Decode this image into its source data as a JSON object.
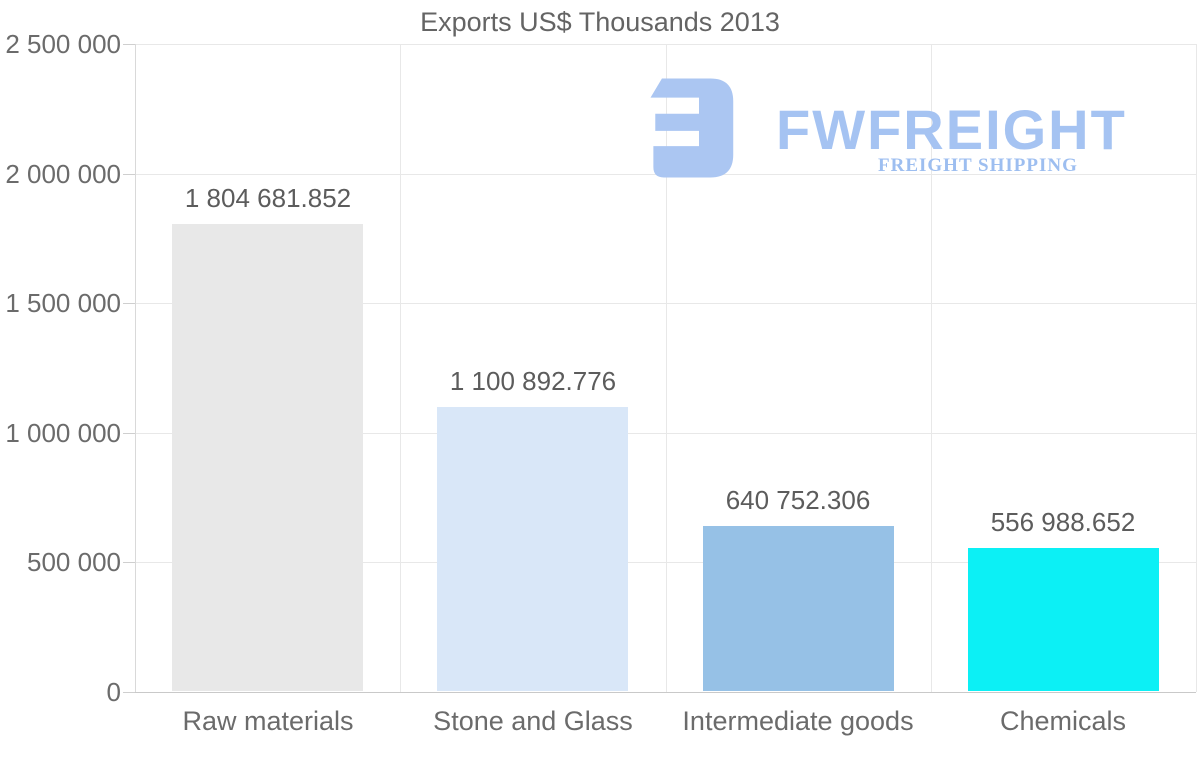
{
  "chart_data": {
    "type": "bar",
    "title": "Exports US$ Thousands 2013",
    "categories": [
      "Raw materials",
      "Stone and Glass",
      "Intermediate goods",
      "Chemicals"
    ],
    "values": [
      1804681.852,
      1100892.776,
      640752.306,
      556988.652
    ],
    "value_labels": [
      "1 804 681.852",
      "1 100 892.776",
      "640 752.306",
      "556 988.652"
    ],
    "bar_colors": [
      "#e8e8e8",
      "#d9e7f8",
      "#96c1e6",
      "#0cf0f5"
    ],
    "xlabel": "",
    "ylabel": "",
    "ylim": [
      0,
      2500000
    ],
    "yticks": {
      "values": [
        0,
        500000,
        1000000,
        1500000,
        2000000,
        2500000
      ],
      "labels": [
        "0",
        "500 000",
        "1 000 000",
        "1 500 000",
        "2 000 000",
        "2 500 000"
      ]
    },
    "grid": true,
    "legend_position": "none",
    "background": "#ffffff",
    "gridline_color": "#e8e8e8",
    "axis_line_color": "#d9d9d9",
    "text_colors": {
      "title": "#646464",
      "axis": "#6b6b6b",
      "values": "#5c5c5c"
    }
  },
  "watermark": {
    "wordmark": "FWFREIGHT",
    "subtitle": "FREIGHT SHIPPING",
    "logo_color": "#abc6f2",
    "wordmark_color": "#a5c3f2",
    "subtitle_color": "#9dbef0"
  }
}
